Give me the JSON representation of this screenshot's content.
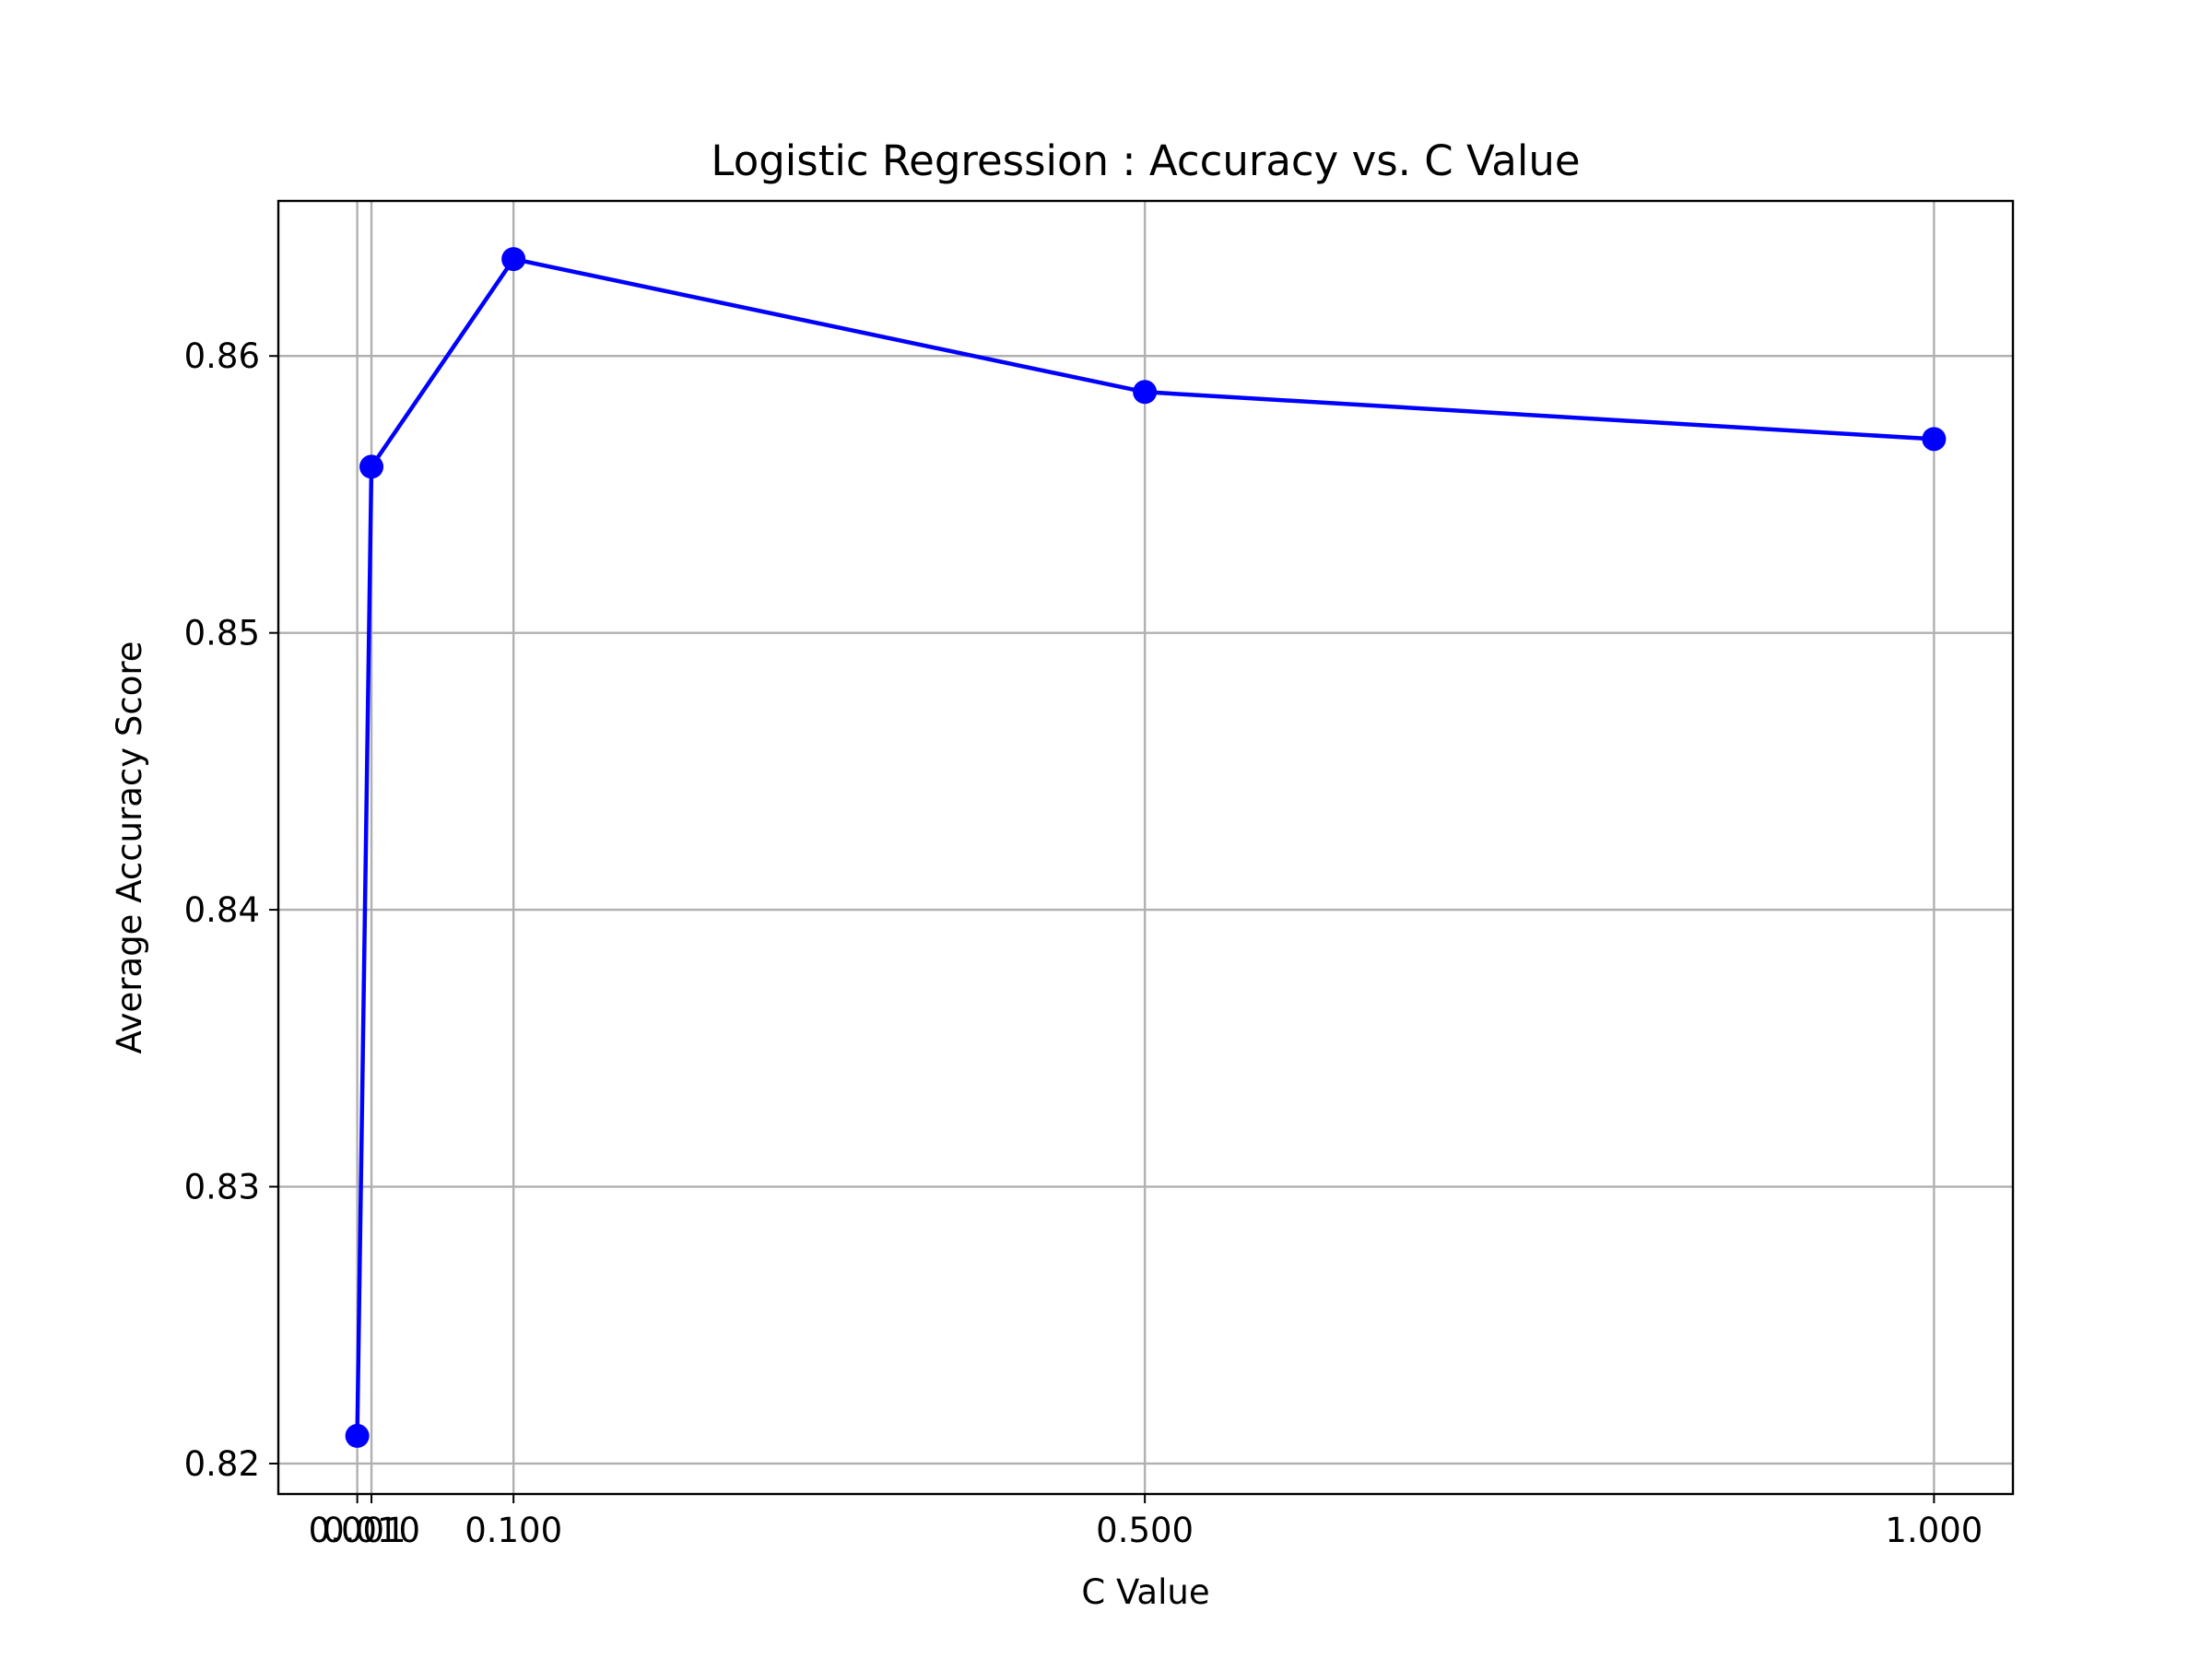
{
  "chart_data": {
    "type": "line",
    "title": "Logistic Regression : Accuracy vs. C Value",
    "xlabel": "C Value",
    "ylabel": "Average Accuracy Score",
    "x": [
      0.001,
      0.01,
      0.1,
      0.5,
      1.0
    ],
    "x_tick_labels": [
      "0.001",
      "0.010",
      "0.100",
      "0.500",
      "1.000"
    ],
    "y_ticks": [
      0.82,
      0.83,
      0.84,
      0.85,
      0.86
    ],
    "y_tick_labels": [
      "0.82",
      "0.83",
      "0.84",
      "0.85",
      "0.86"
    ],
    "xlim": [
      -0.049,
      1.05
    ],
    "ylim": [
      0.8189,
      0.8656
    ],
    "grid": true,
    "series": [
      {
        "values": [
          0.821,
          0.856,
          0.8635,
          0.8587,
          0.857
        ],
        "color": "#0000ff",
        "marker": "circle"
      }
    ]
  }
}
